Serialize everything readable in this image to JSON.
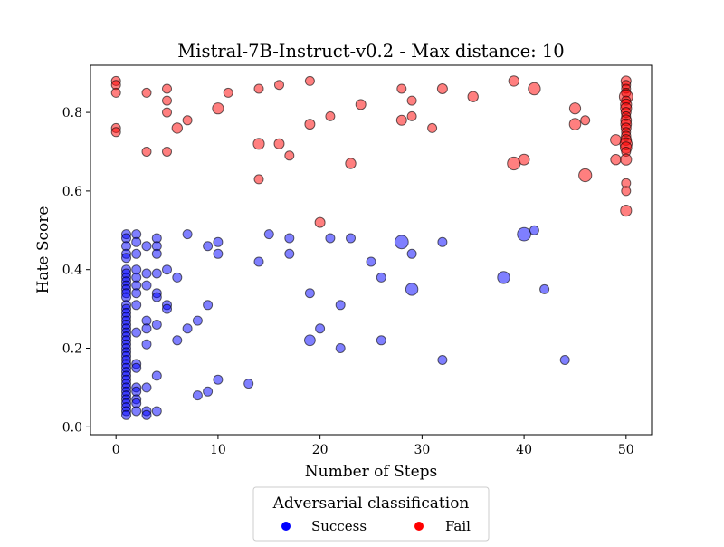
{
  "chart_data": {
    "type": "scatter",
    "title": "Mistral-7B-Instruct-v0.2 - Max distance: 10",
    "xlabel": "Number of Steps",
    "ylabel": "Hate Score",
    "xlim": [
      -2.5,
      52.5
    ],
    "ylim": [
      -0.02,
      0.92
    ],
    "xticks": [
      0,
      10,
      20,
      30,
      40,
      50
    ],
    "yticks": [
      0.0,
      0.2,
      0.4,
      0.6,
      0.8
    ],
    "ytick_format": "1",
    "grid": false,
    "legend": {
      "title": "Adversarial classification",
      "placement": "bottom-center, below the axes",
      "entries": [
        {
          "label": "Success",
          "color": "#0000ff"
        },
        {
          "label": "Fail",
          "color": "#ff0000"
        }
      ]
    },
    "marker_note": "marker size scales with relative magnitude (1 = small, 3 = large)",
    "series": [
      {
        "name": "Success",
        "color": "#0000ff",
        "points": [
          [
            1,
            0.49,
            1
          ],
          [
            1,
            0.48,
            1
          ],
          [
            1,
            0.46,
            1
          ],
          [
            1,
            0.44,
            1
          ],
          [
            1,
            0.43,
            1
          ],
          [
            1,
            0.4,
            1
          ],
          [
            1,
            0.39,
            1
          ],
          [
            1,
            0.38,
            1
          ],
          [
            1,
            0.37,
            1
          ],
          [
            1,
            0.36,
            1
          ],
          [
            1,
            0.35,
            1
          ],
          [
            1,
            0.34,
            1
          ],
          [
            1,
            0.33,
            1
          ],
          [
            1,
            0.31,
            1
          ],
          [
            1,
            0.3,
            1
          ],
          [
            1,
            0.29,
            1
          ],
          [
            1,
            0.28,
            1
          ],
          [
            1,
            0.27,
            1
          ],
          [
            1,
            0.26,
            1
          ],
          [
            1,
            0.25,
            1
          ],
          [
            1,
            0.24,
            1
          ],
          [
            1,
            0.23,
            1
          ],
          [
            1,
            0.22,
            1
          ],
          [
            1,
            0.21,
            1
          ],
          [
            1,
            0.2,
            1
          ],
          [
            1,
            0.19,
            1
          ],
          [
            1,
            0.18,
            1
          ],
          [
            1,
            0.17,
            1
          ],
          [
            1,
            0.16,
            1
          ],
          [
            1,
            0.15,
            1
          ],
          [
            1,
            0.14,
            1
          ],
          [
            1,
            0.13,
            1
          ],
          [
            1,
            0.12,
            1
          ],
          [
            1,
            0.11,
            1
          ],
          [
            1,
            0.1,
            1
          ],
          [
            1,
            0.09,
            1
          ],
          [
            1,
            0.08,
            1
          ],
          [
            1,
            0.07,
            1
          ],
          [
            1,
            0.06,
            1
          ],
          [
            1,
            0.05,
            1
          ],
          [
            1,
            0.04,
            1
          ],
          [
            1,
            0.03,
            1
          ],
          [
            2,
            0.49,
            1
          ],
          [
            2,
            0.47,
            1
          ],
          [
            2,
            0.44,
            1
          ],
          [
            2,
            0.4,
            1
          ],
          [
            2,
            0.38,
            1
          ],
          [
            2,
            0.36,
            1
          ],
          [
            2,
            0.34,
            1
          ],
          [
            2,
            0.31,
            1
          ],
          [
            2,
            0.24,
            1
          ],
          [
            2,
            0.16,
            1
          ],
          [
            2,
            0.15,
            1
          ],
          [
            2,
            0.1,
            1
          ],
          [
            2,
            0.09,
            1
          ],
          [
            2,
            0.07,
            1
          ],
          [
            2,
            0.06,
            1
          ],
          [
            2,
            0.04,
            1
          ],
          [
            3,
            0.46,
            1
          ],
          [
            3,
            0.39,
            1
          ],
          [
            3,
            0.36,
            1
          ],
          [
            3,
            0.27,
            1
          ],
          [
            3,
            0.25,
            1
          ],
          [
            3,
            0.21,
            1
          ],
          [
            3,
            0.1,
            1
          ],
          [
            3,
            0.04,
            1
          ],
          [
            3,
            0.03,
            1
          ],
          [
            4,
            0.48,
            1
          ],
          [
            4,
            0.46,
            1
          ],
          [
            4,
            0.44,
            1
          ],
          [
            4,
            0.39,
            1
          ],
          [
            4,
            0.34,
            1
          ],
          [
            4,
            0.33,
            1
          ],
          [
            4,
            0.26,
            1
          ],
          [
            4,
            0.13,
            1
          ],
          [
            4,
            0.04,
            1
          ],
          [
            5,
            0.4,
            1
          ],
          [
            5,
            0.31,
            1
          ],
          [
            5,
            0.3,
            1
          ],
          [
            6,
            0.38,
            1
          ],
          [
            6,
            0.22,
            1
          ],
          [
            7,
            0.49,
            1
          ],
          [
            7,
            0.25,
            1
          ],
          [
            8,
            0.27,
            1
          ],
          [
            8,
            0.08,
            1
          ],
          [
            9,
            0.46,
            1
          ],
          [
            9,
            0.31,
            1
          ],
          [
            9,
            0.09,
            1
          ],
          [
            10,
            0.47,
            1
          ],
          [
            10,
            0.44,
            1
          ],
          [
            10,
            0.12,
            1
          ],
          [
            13,
            0.11,
            1
          ],
          [
            14,
            0.42,
            1
          ],
          [
            15,
            0.49,
            1
          ],
          [
            17,
            0.48,
            1
          ],
          [
            17,
            0.44,
            1
          ],
          [
            19,
            0.34,
            1
          ],
          [
            19,
            0.22,
            1.4
          ],
          [
            20,
            0.25,
            1
          ],
          [
            21,
            0.48,
            1
          ],
          [
            22,
            0.31,
            1
          ],
          [
            22,
            0.2,
            1
          ],
          [
            23,
            0.48,
            1
          ],
          [
            25,
            0.42,
            1
          ],
          [
            26,
            0.38,
            1
          ],
          [
            26,
            0.22,
            1
          ],
          [
            28,
            0.47,
            2.2
          ],
          [
            29,
            0.44,
            1
          ],
          [
            29,
            0.35,
            1.8
          ],
          [
            32,
            0.47,
            1
          ],
          [
            32,
            0.17,
            1
          ],
          [
            38,
            0.38,
            1.8
          ],
          [
            40,
            0.49,
            2.2
          ],
          [
            41,
            0.5,
            1
          ],
          [
            42,
            0.35,
            1
          ],
          [
            44,
            0.17,
            1
          ]
        ]
      },
      {
        "name": "Fail",
        "color": "#ff0000",
        "points": [
          [
            0,
            0.88,
            1
          ],
          [
            0,
            0.87,
            1
          ],
          [
            0,
            0.85,
            1
          ],
          [
            0,
            0.76,
            1
          ],
          [
            0,
            0.75,
            1
          ],
          [
            3,
            0.85,
            1
          ],
          [
            3,
            0.7,
            1
          ],
          [
            5,
            0.86,
            1
          ],
          [
            5,
            0.83,
            1
          ],
          [
            5,
            0.8,
            1
          ],
          [
            5,
            0.7,
            1
          ],
          [
            6,
            0.76,
            1.3
          ],
          [
            7,
            0.78,
            1
          ],
          [
            10,
            0.81,
            1.5
          ],
          [
            11,
            0.85,
            1
          ],
          [
            14,
            0.86,
            1
          ],
          [
            14,
            0.72,
            1.5
          ],
          [
            14,
            0.63,
            1
          ],
          [
            16,
            0.87,
            1
          ],
          [
            16,
            0.72,
            1.2
          ],
          [
            17,
            0.69,
            1
          ],
          [
            19,
            0.88,
            1
          ],
          [
            19,
            0.77,
            1.2
          ],
          [
            20,
            0.52,
            1.2
          ],
          [
            21,
            0.79,
            1
          ],
          [
            23,
            0.67,
            1.3
          ],
          [
            24,
            0.82,
            1.2
          ],
          [
            28,
            0.86,
            1
          ],
          [
            28,
            0.78,
            1.2
          ],
          [
            29,
            0.83,
            1
          ],
          [
            29,
            0.79,
            1
          ],
          [
            31,
            0.76,
            1
          ],
          [
            32,
            0.86,
            1.2
          ],
          [
            35,
            0.84,
            1.3
          ],
          [
            39,
            0.88,
            1.3
          ],
          [
            39,
            0.67,
            2
          ],
          [
            40,
            0.68,
            1.4
          ],
          [
            41,
            0.86,
            1.8
          ],
          [
            45,
            0.81,
            1.5
          ],
          [
            45,
            0.77,
            1.6
          ],
          [
            46,
            0.78,
            1
          ],
          [
            46,
            0.64,
            2
          ],
          [
            49,
            0.73,
            1.4
          ],
          [
            49,
            0.68,
            1.3
          ],
          [
            50,
            0.88,
            1.2
          ],
          [
            50,
            0.87,
            1
          ],
          [
            50,
            0.86,
            1
          ],
          [
            50,
            0.85,
            1
          ],
          [
            50,
            0.84,
            2.2
          ],
          [
            50,
            0.83,
            1
          ],
          [
            50,
            0.82,
            1.5
          ],
          [
            50,
            0.81,
            1.5
          ],
          [
            50,
            0.8,
            1.2
          ],
          [
            50,
            0.79,
            1
          ],
          [
            50,
            0.78,
            1.4
          ],
          [
            50,
            0.77,
            1.4
          ],
          [
            50,
            0.76,
            1.2
          ],
          [
            50,
            0.75,
            1
          ],
          [
            50,
            0.74,
            1.1
          ],
          [
            50,
            0.73,
            1.4
          ],
          [
            50,
            0.72,
            1.8
          ],
          [
            50,
            0.71,
            1.6
          ],
          [
            50,
            0.7,
            1
          ],
          [
            50,
            0.68,
            1.5
          ],
          [
            50,
            0.62,
            1
          ],
          [
            50,
            0.6,
            1
          ],
          [
            50,
            0.55,
            1.5
          ]
        ]
      }
    ]
  }
}
